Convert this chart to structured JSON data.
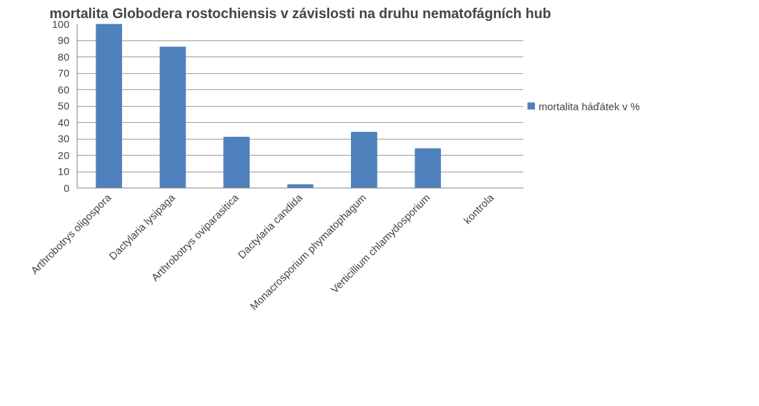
{
  "chart_data": {
    "type": "bar",
    "title": "mortalita Globodera rostochiensis v závislosti na druhu nematofágních hub",
    "categories": [
      "Arthrobotrys oligospora",
      "Dactylaria lysipaga",
      "Arthrobotrys oviparasitica",
      "Dactylaria candida",
      "Monacrosporium phymatophagum",
      "Verticillium chlamydosporium",
      "kontrola"
    ],
    "series": [
      {
        "name": "mortalita háďátek v %",
        "color": "#4f81bd",
        "values": [
          100,
          86,
          31,
          2,
          34,
          24,
          0
        ]
      }
    ],
    "ylim": [
      0,
      100
    ],
    "yticks": [
      0,
      10,
      20,
      30,
      40,
      50,
      60,
      70,
      80,
      90,
      100
    ],
    "grid": "y",
    "legend": "right"
  }
}
